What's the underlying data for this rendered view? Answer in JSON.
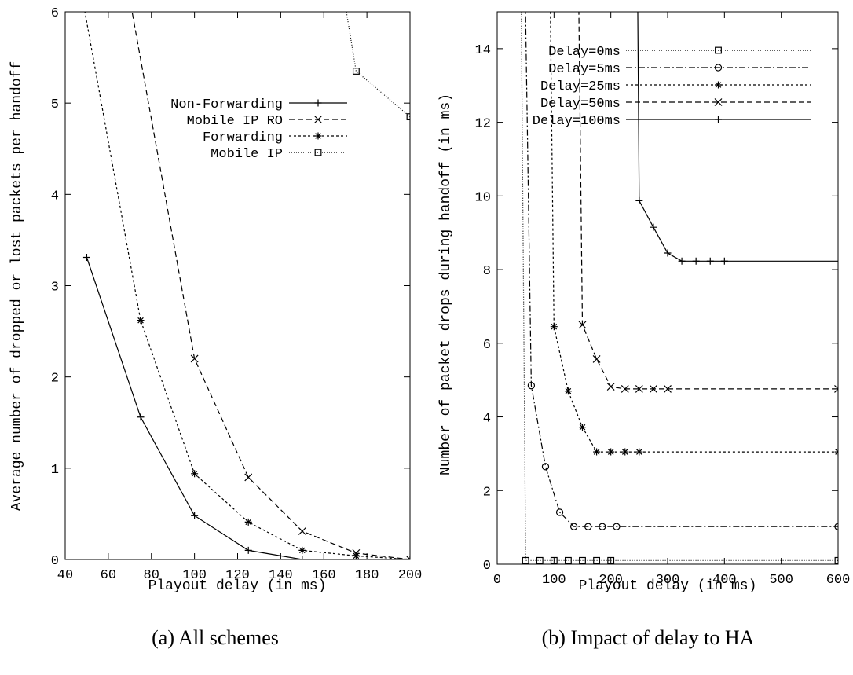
{
  "chart_data": [
    {
      "type": "line",
      "title": "",
      "caption": "(a) All schemes",
      "xlabel": "Playout delay (in ms)",
      "ylabel": "Average number of dropped or lost packets per handoff",
      "xlim": [
        40,
        200
      ],
      "ylim": [
        0,
        6
      ],
      "xticks": [
        "40",
        "60",
        "80",
        "100",
        "120",
        "140",
        "160",
        "180",
        "200"
      ],
      "yticks": [
        "0",
        "1",
        "2",
        "3",
        "4",
        "5",
        "6"
      ],
      "grid": false,
      "legend_position": "top-right",
      "series": [
        {
          "name": "Non-Forwarding",
          "marker": "plus",
          "dash": "solid",
          "x": [
            50,
            75,
            100,
            125,
            150,
            175,
            200
          ],
          "y": [
            3.31,
            1.56,
            0.48,
            0.1,
            0.0,
            0.0,
            0.0
          ]
        },
        {
          "name": "Mobile IP RO",
          "marker": "cross",
          "dash": "dashed",
          "x": [
            52,
            100,
            125,
            150,
            175,
            200
          ],
          "y": [
            8.5,
            2.2,
            0.9,
            0.31,
            0.07,
            0.0
          ]
        },
        {
          "name": "Forwarding",
          "marker": "star",
          "dash": "dotted",
          "x": [
            30,
            75,
            100,
            125,
            150,
            175,
            200
          ],
          "y": [
            8.5,
            2.62,
            0.94,
            0.41,
            0.1,
            0.04,
            0.0
          ]
        },
        {
          "name": "Mobile IP",
          "marker": "square",
          "dash": "fine-dotted",
          "x": [
            160,
            175,
            200
          ],
          "y": [
            7.5,
            5.35,
            4.85
          ]
        }
      ]
    },
    {
      "type": "line",
      "title": "",
      "caption": "(b) Impact of delay to HA",
      "xlabel": "Playout delay (in ms)",
      "ylabel": "Number of packet drops during handoff (in ms)",
      "xlim": [
        0,
        600
      ],
      "ylim": [
        0,
        15
      ],
      "xticks": [
        "0",
        "100",
        "200",
        "300",
        "400",
        "500",
        "600"
      ],
      "yticks": [
        "0",
        "2",
        "4",
        "6",
        "8",
        "10",
        "12",
        "14"
      ],
      "grid": false,
      "legend_position": "top-right",
      "series": [
        {
          "name": "Delay=0ms",
          "marker": "square",
          "dash": "fine-dotted",
          "marker_x": [
            50,
            75,
            100,
            125,
            150,
            175,
            200,
            600
          ],
          "x": [
            40,
            50,
            75,
            100,
            125,
            150,
            175,
            200,
            600
          ],
          "y": [
            20,
            0.1,
            0.1,
            0.1,
            0.1,
            0.1,
            0.1,
            0.1,
            0.1
          ]
        },
        {
          "name": "Delay=5ms",
          "marker": "circle",
          "dash": "dash-dot",
          "marker_x": [
            60,
            85,
            110,
            135,
            160,
            185,
            210,
            600
          ],
          "x": [
            45,
            60,
            85,
            110,
            135,
            160,
            185,
            210,
            600
          ],
          "y": [
            20,
            4.85,
            2.65,
            1.41,
            1.02,
            1.02,
            1.02,
            1.02,
            1.02
          ]
        },
        {
          "name": "Delay=25ms",
          "marker": "star",
          "dash": "dotted",
          "marker_x": [
            100,
            125,
            150,
            175,
            200,
            225,
            250,
            600
          ],
          "x": [
            90,
            100,
            125,
            150,
            175,
            200,
            225,
            250,
            600
          ],
          "y": [
            20,
            6.45,
            4.7,
            3.72,
            3.05,
            3.05,
            3.05,
            3.05,
            3.05
          ]
        },
        {
          "name": "Delay=50ms",
          "marker": "cross",
          "dash": "dashed",
          "marker_x": [
            150,
            175,
            200,
            225,
            250,
            275,
            300,
            600
          ],
          "x": [
            140,
            150,
            175,
            200,
            225,
            250,
            275,
            300,
            600
          ],
          "y": [
            20,
            6.5,
            5.57,
            4.82,
            4.76,
            4.76,
            4.76,
            4.76,
            4.76
          ]
        },
        {
          "name": "Delay=100ms",
          "marker": "plus",
          "dash": "solid",
          "marker_x": [
            250,
            275,
            300,
            325,
            350,
            375,
            400
          ],
          "x": [
            245,
            250,
            275,
            300,
            325,
            350,
            375,
            400,
            600
          ],
          "y": [
            20,
            9.87,
            9.15,
            8.45,
            8.23,
            8.23,
            8.23,
            8.23,
            8.23
          ]
        }
      ]
    }
  ]
}
